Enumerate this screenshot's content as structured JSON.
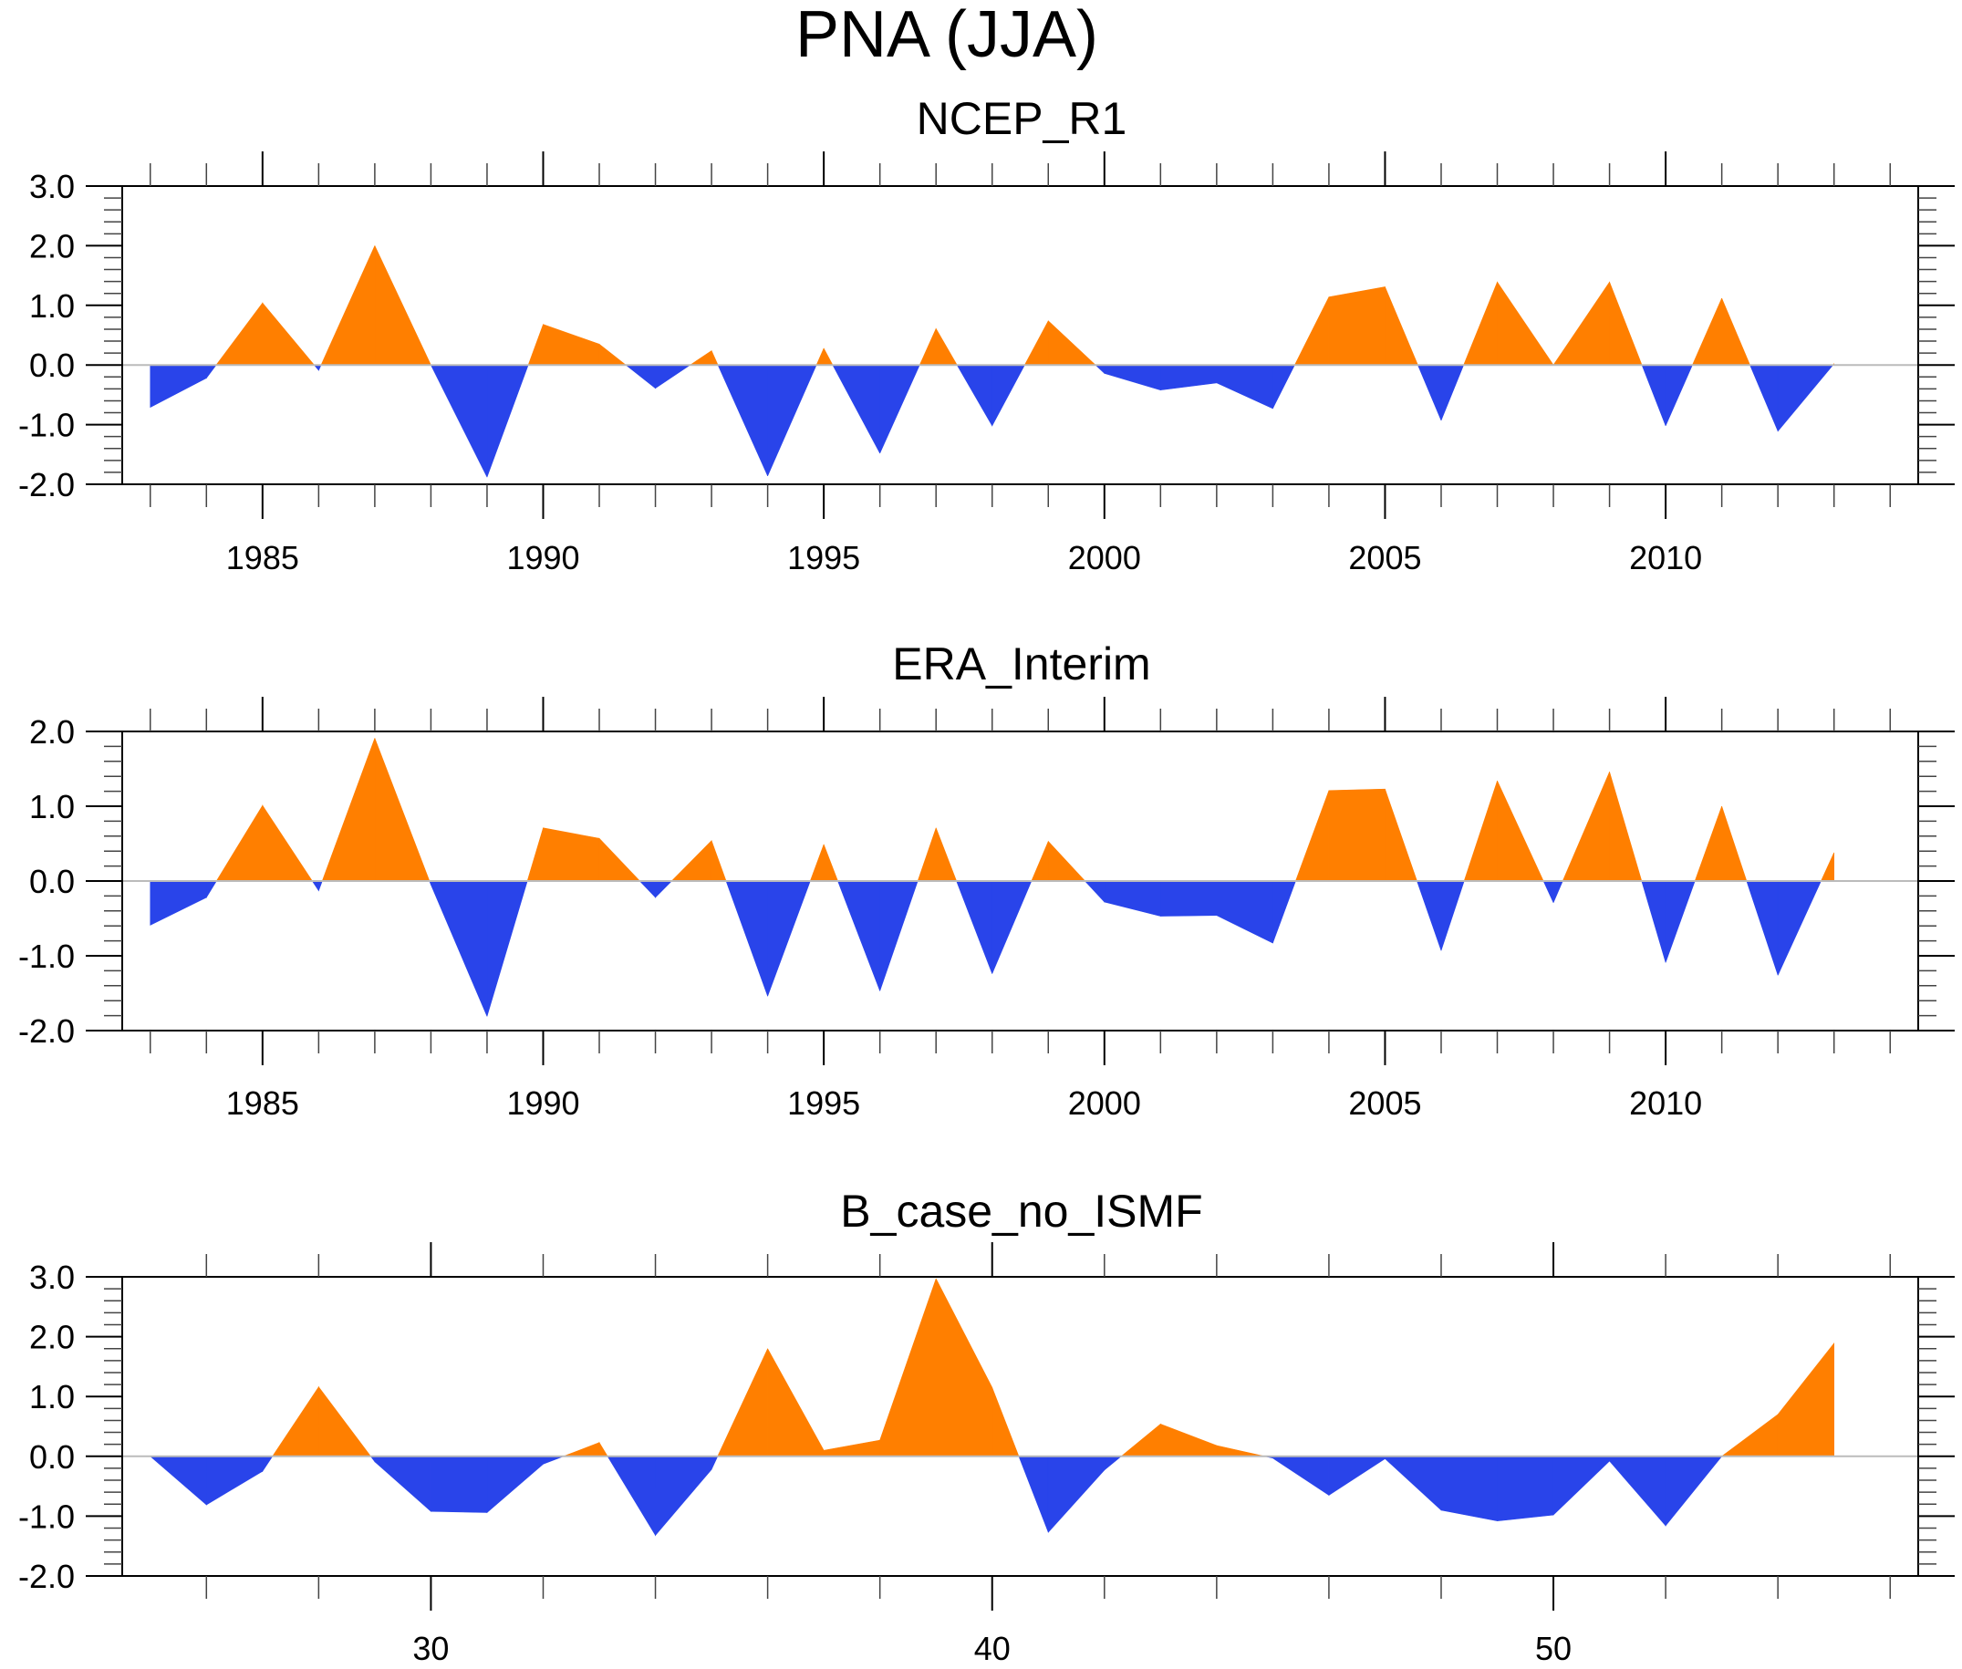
{
  "figure": {
    "title": "PNA (JJA)"
  },
  "colors": {
    "positive": "#FF7F00",
    "negative": "#2944EA",
    "axis": "#000000",
    "zero_line": "#BBBBBB"
  },
  "chart_data": [
    {
      "type": "area",
      "title": "NCEP_R1",
      "xlabel": "",
      "ylabel": "",
      "xlim": [
        1982.5,
        2014.5
      ],
      "ylim": [
        -2.0,
        3.0
      ],
      "x_major_ticks": [
        1985,
        1990,
        1995,
        2000,
        2005,
        2010
      ],
      "x_tick_labels": [
        "1985",
        "1990",
        "1995",
        "2000",
        "2005",
        "2010"
      ],
      "x_minor_step": 1,
      "y_major_ticks": [
        -2.0,
        -1.0,
        0.0,
        1.0,
        2.0,
        3.0
      ],
      "y_tick_labels": [
        "-2.0",
        "-1.0",
        "0.0",
        "1.0",
        "2.0",
        "3.0"
      ],
      "y_minor_step": 0.2,
      "reference_line": 0.0,
      "grid": false,
      "x": [
        1983,
        1984,
        1985,
        1986,
        1987,
        1988,
        1989,
        1990,
        1991,
        1992,
        1993,
        1994,
        1995,
        1996,
        1997,
        1998,
        1999,
        2000,
        2001,
        2002,
        2003,
        2004,
        2005,
        2006,
        2007,
        2008,
        2009,
        2010,
        2011,
        2012,
        2013
      ],
      "values": [
        -0.71,
        -0.22,
        1.04,
        -0.09,
        2.0,
        0.0,
        -1.88,
        0.68,
        0.35,
        -0.39,
        0.24,
        -1.86,
        0.28,
        -1.48,
        0.61,
        -1.02,
        0.74,
        -0.14,
        -0.42,
        -0.3,
        -0.73,
        1.14,
        1.31,
        -0.93,
        1.39,
        0.0,
        1.39,
        -1.02,
        1.12,
        -1.11,
        0.02
      ]
    },
    {
      "type": "area",
      "title": "ERA_Interim",
      "xlabel": "",
      "ylabel": "",
      "xlim": [
        1982.5,
        2014.5
      ],
      "ylim": [
        -2.0,
        2.0
      ],
      "x_major_ticks": [
        1985,
        1990,
        1995,
        2000,
        2005,
        2010
      ],
      "x_tick_labels": [
        "1985",
        "1990",
        "1995",
        "2000",
        "2005",
        "2010"
      ],
      "x_minor_step": 1,
      "y_major_ticks": [
        -2.0,
        -1.0,
        0.0,
        1.0,
        2.0
      ],
      "y_tick_labels": [
        "-2.0",
        "-1.0",
        "0.0",
        "1.0",
        "2.0"
      ],
      "y_minor_step": 0.2,
      "reference_line": 0.0,
      "grid": false,
      "x": [
        1983,
        1984,
        1985,
        1986,
        1987,
        1988,
        1989,
        1990,
        1991,
        1992,
        1993,
        1994,
        1995,
        1996,
        1997,
        1998,
        1999,
        2000,
        2001,
        2002,
        2003,
        2004,
        2005,
        2006,
        2007,
        2008,
        2009,
        2010,
        2011,
        2012,
        2013
      ],
      "values": [
        -0.59,
        -0.22,
        1.01,
        -0.13,
        1.91,
        -0.05,
        -1.81,
        0.71,
        0.57,
        -0.22,
        0.54,
        -1.54,
        0.49,
        -1.47,
        0.71,
        -1.24,
        0.53,
        -0.28,
        -0.47,
        -0.46,
        -0.83,
        1.21,
        1.23,
        -0.93,
        1.34,
        -0.29,
        1.46,
        -1.09,
        1.0,
        -1.26,
        0.38
      ]
    },
    {
      "type": "area",
      "title": "B_case_no_ISMF",
      "xlabel": "",
      "ylabel": "",
      "xlim": [
        24.5,
        56.5
      ],
      "ylim": [
        -2.0,
        3.0
      ],
      "x_major_ticks": [
        30,
        40,
        50
      ],
      "x_tick_labels": [
        "30",
        "40",
        "50"
      ],
      "x_minor_step": 2,
      "y_major_ticks": [
        -2.0,
        -1.0,
        0.0,
        1.0,
        2.0,
        3.0
      ],
      "y_tick_labels": [
        "-2.0",
        "-1.0",
        "0.0",
        "1.0",
        "2.0",
        "3.0"
      ],
      "y_minor_step": 0.2,
      "reference_line": 0.0,
      "grid": false,
      "x": [
        25,
        26,
        27,
        28,
        29,
        30,
        31,
        32,
        33,
        34,
        35,
        36,
        37,
        38,
        39,
        40,
        41,
        42,
        43,
        44,
        45,
        46,
        47,
        48,
        49,
        50,
        51,
        52,
        53,
        54,
        55
      ],
      "values": [
        0.0,
        -0.81,
        -0.25,
        1.16,
        -0.09,
        -0.92,
        -0.94,
        -0.13,
        0.23,
        -1.32,
        -0.22,
        1.8,
        0.1,
        0.27,
        2.97,
        1.15,
        -1.27,
        -0.23,
        0.54,
        0.18,
        -0.03,
        -0.65,
        -0.04,
        -0.9,
        -1.08,
        -0.98,
        -0.08,
        -1.16,
        0.0,
        0.7,
        1.89
      ]
    }
  ]
}
